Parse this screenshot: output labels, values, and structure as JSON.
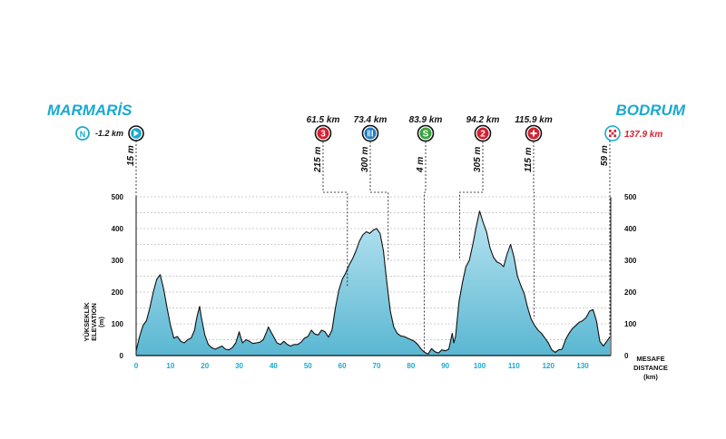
{
  "chart_data": {
    "type": "area",
    "start_city": "MARMARİS",
    "finish_city": "BODRUM",
    "start_marker": {
      "letter": "N",
      "km_label": "-1.2 km",
      "altitude_label": "15 m"
    },
    "finish_marker": {
      "km_label": "137.9 km",
      "altitude_label": "59 m"
    },
    "ylabel_lines": [
      "YÜKSEKLİK",
      "ELEVATION",
      "(m)"
    ],
    "xlabel_lines": [
      "MESAFE",
      "DISTANCE",
      "(km)"
    ],
    "ylim": [
      0,
      500
    ],
    "xlim": [
      0,
      137.9
    ],
    "y_ticks": [
      "0",
      "100",
      "200",
      "300",
      "400",
      "500"
    ],
    "x_ticks": [
      "0",
      "10",
      "20",
      "30",
      "40",
      "50",
      "60",
      "70",
      "80",
      "90",
      "100",
      "110",
      "120",
      "130"
    ],
    "x_tick_values": [
      0,
      10,
      20,
      30,
      40,
      50,
      60,
      70,
      80,
      90,
      100,
      110,
      120,
      130
    ],
    "grid": "horizontal dashed",
    "colors": {
      "title": "#1aa9cf",
      "fill_top": "#b9e4f1",
      "fill_bottom": "#5ab7d2",
      "line": "#111111",
      "climb": "#d42030",
      "feed": "#1f7fc4",
      "sprint": "#3aa43c",
      "finish_km": "#d42030"
    },
    "markers": [
      {
        "km": 61.5,
        "km_label": "61.5 km",
        "altitude": 215,
        "altitude_label": "215 m",
        "type": "climb",
        "symbol": "3"
      },
      {
        "km": 73.4,
        "km_label": "73.4 km",
        "altitude": 300,
        "altitude_label": "300 m",
        "type": "feed",
        "symbol": "fork-knife-icon"
      },
      {
        "km": 83.9,
        "km_label": "83.9 km",
        "altitude": 4,
        "altitude_label": "4 m",
        "type": "sprint",
        "symbol": "S"
      },
      {
        "km": 94.2,
        "km_label": "94.2 km",
        "altitude": 305,
        "altitude_label": "305 m",
        "type": "climb",
        "symbol": "2"
      },
      {
        "km": 115.9,
        "km_label": "115.9 km",
        "altitude": 115,
        "altitude_label": "115 m",
        "type": "plus",
        "symbol": "plus-icon"
      }
    ],
    "profile": [
      [
        0,
        15
      ],
      [
        1,
        60
      ],
      [
        2,
        95
      ],
      [
        3,
        110
      ],
      [
        4,
        150
      ],
      [
        5,
        200
      ],
      [
        6,
        240
      ],
      [
        7,
        255
      ],
      [
        8,
        210
      ],
      [
        9,
        150
      ],
      [
        10,
        95
      ],
      [
        11,
        55
      ],
      [
        12,
        60
      ],
      [
        13,
        45
      ],
      [
        14,
        40
      ],
      [
        15,
        50
      ],
      [
        16,
        55
      ],
      [
        17,
        80
      ],
      [
        17.5,
        110
      ],
      [
        18,
        135
      ],
      [
        18.5,
        155
      ],
      [
        19,
        120
      ],
      [
        20,
        65
      ],
      [
        21,
        35
      ],
      [
        22,
        25
      ],
      [
        23,
        20
      ],
      [
        24,
        25
      ],
      [
        25,
        30
      ],
      [
        26,
        20
      ],
      [
        27,
        18
      ],
      [
        28,
        25
      ],
      [
        29,
        40
      ],
      [
        30,
        75
      ],
      [
        30.5,
        55
      ],
      [
        31,
        40
      ],
      [
        32,
        50
      ],
      [
        33,
        45
      ],
      [
        34,
        38
      ],
      [
        35,
        40
      ],
      [
        36,
        42
      ],
      [
        37,
        50
      ],
      [
        38,
        75
      ],
      [
        38.5,
        90
      ],
      [
        39,
        80
      ],
      [
        40,
        60
      ],
      [
        41,
        40
      ],
      [
        42,
        35
      ],
      [
        43,
        45
      ],
      [
        44,
        35
      ],
      [
        45,
        30
      ],
      [
        46,
        35
      ],
      [
        47,
        35
      ],
      [
        48,
        42
      ],
      [
        49,
        55
      ],
      [
        50,
        60
      ],
      [
        51,
        80
      ],
      [
        52,
        68
      ],
      [
        53,
        65
      ],
      [
        54,
        80
      ],
      [
        55,
        75
      ],
      [
        56,
        58
      ],
      [
        57,
        80
      ],
      [
        58,
        150
      ],
      [
        59,
        205
      ],
      [
        60,
        240
      ],
      [
        61,
        260
      ],
      [
        62,
        285
      ],
      [
        63,
        305
      ],
      [
        64,
        330
      ],
      [
        65,
        360
      ],
      [
        66,
        380
      ],
      [
        67,
        390
      ],
      [
        68,
        385
      ],
      [
        69,
        395
      ],
      [
        70,
        400
      ],
      [
        71,
        385
      ],
      [
        72,
        330
      ],
      [
        73,
        230
      ],
      [
        74,
        140
      ],
      [
        75,
        90
      ],
      [
        76,
        70
      ],
      [
        77,
        62
      ],
      [
        78,
        60
      ],
      [
        79,
        55
      ],
      [
        80,
        50
      ],
      [
        81,
        45
      ],
      [
        82,
        35
      ],
      [
        83,
        20
      ],
      [
        84,
        10
      ],
      [
        85,
        5
      ],
      [
        86,
        22
      ],
      [
        87,
        12
      ],
      [
        88,
        8
      ],
      [
        89,
        18
      ],
      [
        90,
        15
      ],
      [
        91,
        20
      ],
      [
        92,
        70
      ],
      [
        92.5,
        40
      ],
      [
        93,
        60
      ],
      [
        94,
        170
      ],
      [
        95,
        230
      ],
      [
        96,
        280
      ],
      [
        97,
        300
      ],
      [
        98,
        350
      ],
      [
        99,
        405
      ],
      [
        100,
        455
      ],
      [
        101,
        420
      ],
      [
        102,
        390
      ],
      [
        103,
        340
      ],
      [
        104,
        310
      ],
      [
        105,
        295
      ],
      [
        106,
        290
      ],
      [
        107,
        280
      ],
      [
        108,
        320
      ],
      [
        109,
        350
      ],
      [
        110,
        310
      ],
      [
        111,
        250
      ],
      [
        112,
        220
      ],
      [
        113,
        195
      ],
      [
        114,
        150
      ],
      [
        115,
        115
      ],
      [
        116,
        95
      ],
      [
        117,
        80
      ],
      [
        118,
        70
      ],
      [
        119,
        55
      ],
      [
        120,
        40
      ],
      [
        121,
        18
      ],
      [
        122,
        10
      ],
      [
        123,
        18
      ],
      [
        124,
        20
      ],
      [
        125,
        50
      ],
      [
        126,
        70
      ],
      [
        127,
        85
      ],
      [
        128,
        95
      ],
      [
        129,
        105
      ],
      [
        130,
        110
      ],
      [
        131,
        120
      ],
      [
        132,
        140
      ],
      [
        133,
        145
      ],
      [
        134,
        110
      ],
      [
        135,
        45
      ],
      [
        136,
        30
      ],
      [
        137,
        45
      ],
      [
        137.9,
        59
      ]
    ]
  }
}
